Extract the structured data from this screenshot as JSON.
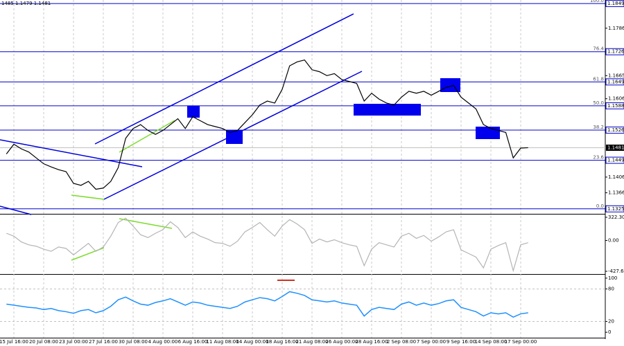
{
  "header": "1485 1.1479 1.1481",
  "chart_data": [
    {
      "type": "line",
      "color": "#000000",
      "categories": [
        null,
        "15 Jul 16:00",
        null,
        null,
        null,
        "20 Jul 08:00",
        null,
        null,
        null,
        "23 Jul 00:00",
        null,
        null,
        null,
        "27 Jul 16:00",
        null,
        null,
        null,
        "30 Jul 08:00",
        null,
        null,
        null,
        "4 Aug 00:00",
        null,
        null,
        null,
        "6 Aug 16:00",
        null,
        null,
        null,
        "11 Aug 08:00",
        null,
        null,
        null,
        "14 Aug 00:00",
        null,
        null,
        null,
        "18 Aug 16:00",
        null,
        null,
        null,
        "21 Aug 08:00",
        null,
        null,
        null,
        "26 Aug 00:00",
        null,
        null,
        null,
        "28 Aug 16:00",
        null,
        null,
        null,
        "2 Sep 08:00",
        null,
        null,
        null,
        "7 Sep 00:00",
        null,
        null,
        null,
        "9 Sep 16:00",
        null,
        null,
        null,
        "14 Sep 08:00",
        null,
        null,
        null,
        "17 Sep 00:00",
        null
      ],
      "values": [
        1.1465,
        1.149,
        1.1478,
        1.147,
        1.1455,
        1.144,
        1.1432,
        1.1425,
        1.142,
        1.139,
        1.1385,
        1.1395,
        1.1375,
        1.1378,
        1.1395,
        1.143,
        1.1505,
        1.153,
        1.154,
        1.1525,
        1.1515,
        1.1525,
        1.154,
        1.1555,
        1.153,
        1.156,
        1.155,
        1.154,
        1.1535,
        1.153,
        1.152,
        1.1525,
        1.1545,
        1.1565,
        1.159,
        1.16,
        1.1595,
        1.163,
        1.169,
        1.17,
        1.1705,
        1.168,
        1.1675,
        1.1665,
        1.167,
        1.1655,
        1.165,
        1.1645,
        1.16,
        1.162,
        1.1605,
        1.1595,
        1.159,
        1.161,
        1.1625,
        1.162,
        1.1625,
        1.1615,
        1.1625,
        1.1635,
        1.164,
        1.161,
        1.1595,
        1.158,
        1.154,
        1.153,
        1.1525,
        1.152,
        1.1455,
        1.148,
        1.1481
      ],
      "ylim": [
        1.1314,
        1.1858
      ],
      "yticks": [
        1.1786,
        1.1665,
        1.1606,
        1.1406,
        1.1366
      ],
      "fib_levels": [
        {
          "ratio": "100.0",
          "price": 1.1849
        },
        {
          "ratio": "76.4",
          "price": 1.1726
        },
        {
          "ratio": "61.8",
          "price": 1.1649
        },
        {
          "ratio": "50.0",
          "price": 1.1588
        },
        {
          "ratio": "38.2",
          "price": 1.1526
        },
        {
          "ratio": "23.6",
          "price": 1.1449
        },
        {
          "ratio": "0.0",
          "price": 1.1325
        }
      ],
      "current_price": 1.1481
    },
    {
      "type": "line",
      "color": "#b4b4b4",
      "values": [
        100,
        60,
        -20,
        -60,
        -80,
        -120,
        -150,
        -90,
        -110,
        -200,
        -120,
        -40,
        -150,
        -90,
        60,
        250,
        310,
        200,
        80,
        40,
        100,
        150,
        260,
        180,
        40,
        120,
        60,
        20,
        -30,
        -40,
        -80,
        -10,
        120,
        180,
        250,
        150,
        60,
        200,
        290,
        230,
        150,
        -40,
        20,
        -20,
        10,
        -30,
        -60,
        -80,
        -350,
        -120,
        -30,
        -60,
        -90,
        60,
        100,
        30,
        70,
        -10,
        50,
        120,
        150,
        -130,
        -180,
        -230,
        -380,
        -120,
        -70,
        -30,
        -420,
        -60,
        -30
      ],
      "ylim": [
        -456,
        351
      ],
      "yticks": [
        322.3074,
        {
          "value": 0,
          "label": "0.00"
        },
        -427.686
      ]
    },
    {
      "type": "line",
      "color": "#1e90ff",
      "values": [
        52,
        50,
        48,
        46,
        45,
        42,
        44,
        40,
        38,
        35,
        40,
        42,
        36,
        40,
        48,
        60,
        65,
        58,
        52,
        50,
        55,
        58,
        62,
        56,
        50,
        56,
        54,
        50,
        48,
        46,
        44,
        48,
        56,
        60,
        64,
        62,
        58,
        66,
        75,
        72,
        68,
        60,
        58,
        56,
        58,
        54,
        52,
        50,
        30,
        42,
        46,
        44,
        42,
        52,
        56,
        50,
        54,
        50,
        53,
        58,
        60,
        46,
        42,
        38,
        30,
        36,
        34,
        36,
        28,
        34,
        36
      ],
      "ylim": [
        -10,
        105
      ],
      "yticks": [
        100,
        80,
        20,
        0
      ],
      "dashed_levels": [
        80,
        20
      ]
    }
  ]
}
